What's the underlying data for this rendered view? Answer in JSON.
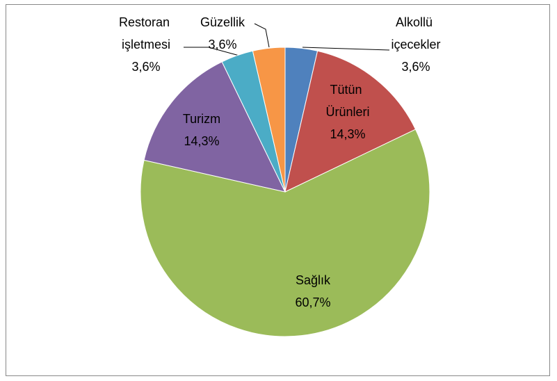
{
  "chart_data": {
    "type": "pie",
    "categories": [
      "Alkollü içecekler",
      "Tütün Ürünleri",
      "Sağlık",
      "Turizm",
      "Restoran işletmesi",
      "Güzellik"
    ],
    "values": [
      3.6,
      14.3,
      60.7,
      14.3,
      3.6,
      3.6
    ],
    "value_labels": [
      "3,6%",
      "14,3%",
      "60,7%",
      "14,3%",
      "3,6%",
      "3,6%"
    ],
    "colors": [
      "#4f81bd",
      "#c0504d",
      "#9bbb59",
      "#8064a2",
      "#4bacc6",
      "#f79646"
    ]
  }
}
